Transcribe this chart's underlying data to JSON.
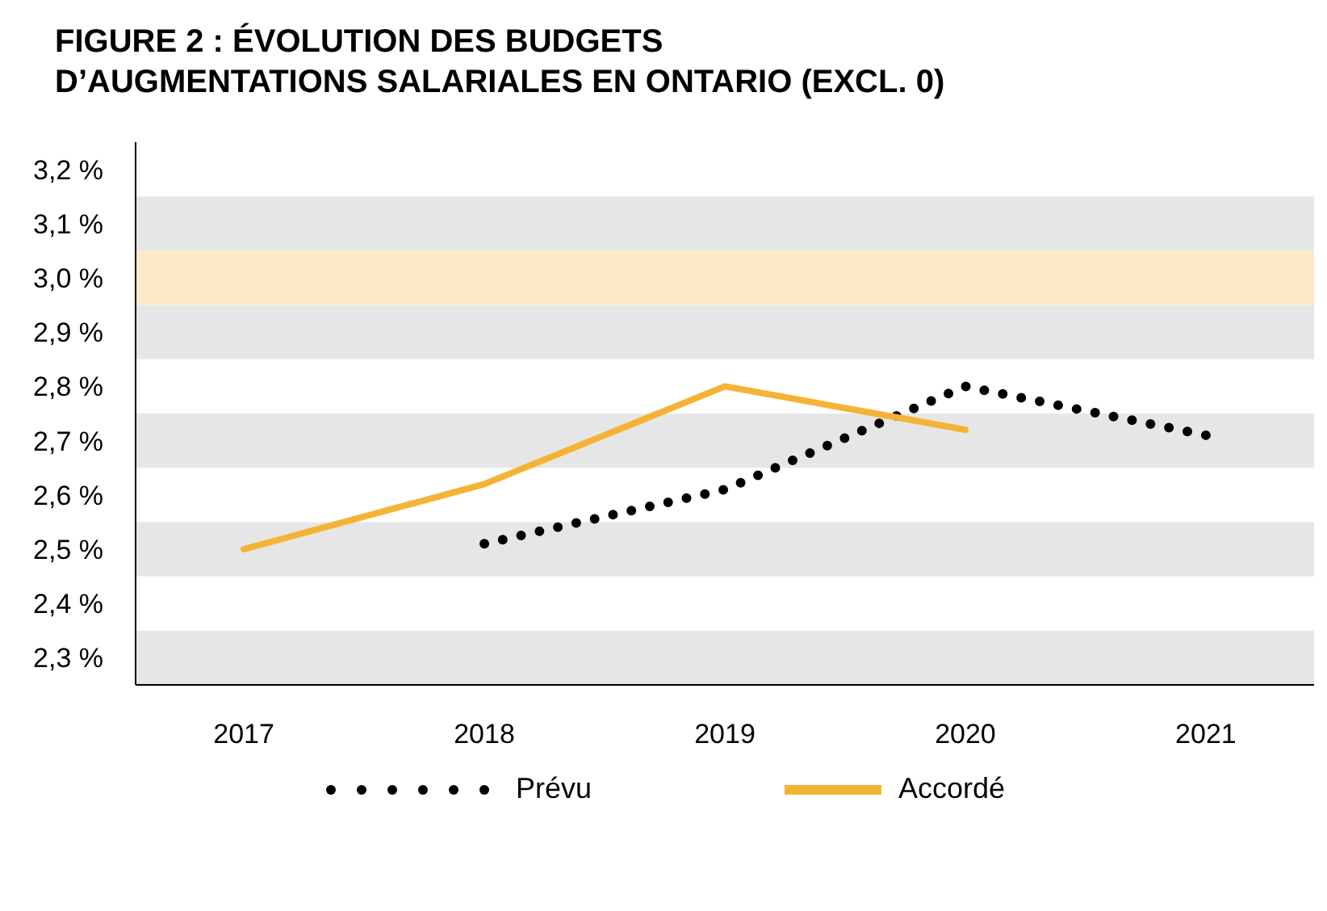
{
  "chart_data": {
    "type": "line",
    "title": "FIGURE 2 : ÉVOLUTION DES BUDGETS D’AUGMENTATIONS SALARIALES EN ONTARIO (EXCL. 0)",
    "categories": [
      "2017",
      "2018",
      "2019",
      "2020",
      "2021"
    ],
    "series": [
      {
        "name": "Prévu",
        "color": "#000000",
        "line_style": "dotted",
        "values": [
          null,
          2.51,
          2.61,
          2.8,
          2.71
        ]
      },
      {
        "name": "Accordé",
        "color": "#f5b335",
        "line_style": "solid",
        "values": [
          2.5,
          2.62,
          2.8,
          2.72,
          null
        ]
      }
    ],
    "ylim": [
      2.25,
      3.25
    ],
    "yticks": [
      {
        "value": 2.3,
        "label": "2,3 %"
      },
      {
        "value": 2.4,
        "label": "2,4 %"
      },
      {
        "value": 2.5,
        "label": "2,5 %"
      },
      {
        "value": 2.6,
        "label": "2,6 %"
      },
      {
        "value": 2.7,
        "label": "2,7 %"
      },
      {
        "value": 2.8,
        "label": "2,8 %"
      },
      {
        "value": 2.9,
        "label": "2,9 %"
      },
      {
        "value": 3.0,
        "label": "3,0 %"
      },
      {
        "value": 3.1,
        "label": "3,1 %"
      },
      {
        "value": 3.2,
        "label": "3,2 %"
      }
    ],
    "bands": [
      {
        "axis": "y",
        "from": 2.25,
        "to": 2.35,
        "color": "#e6e6e6"
      },
      {
        "axis": "y",
        "from": 2.45,
        "to": 2.55,
        "color": "#e6e6e6"
      },
      {
        "axis": "y",
        "from": 2.65,
        "to": 2.75,
        "color": "#e6e6e6"
      },
      {
        "axis": "y",
        "from": 2.85,
        "to": 2.95,
        "color": "#e6e6e6"
      },
      {
        "axis": "y",
        "from": 2.95,
        "to": 3.05,
        "color": "#fbe9c8"
      },
      {
        "axis": "y",
        "from": 3.05,
        "to": 3.15,
        "color": "#e6e6e6"
      }
    ],
    "marker": "none",
    "legend": "bottom"
  }
}
